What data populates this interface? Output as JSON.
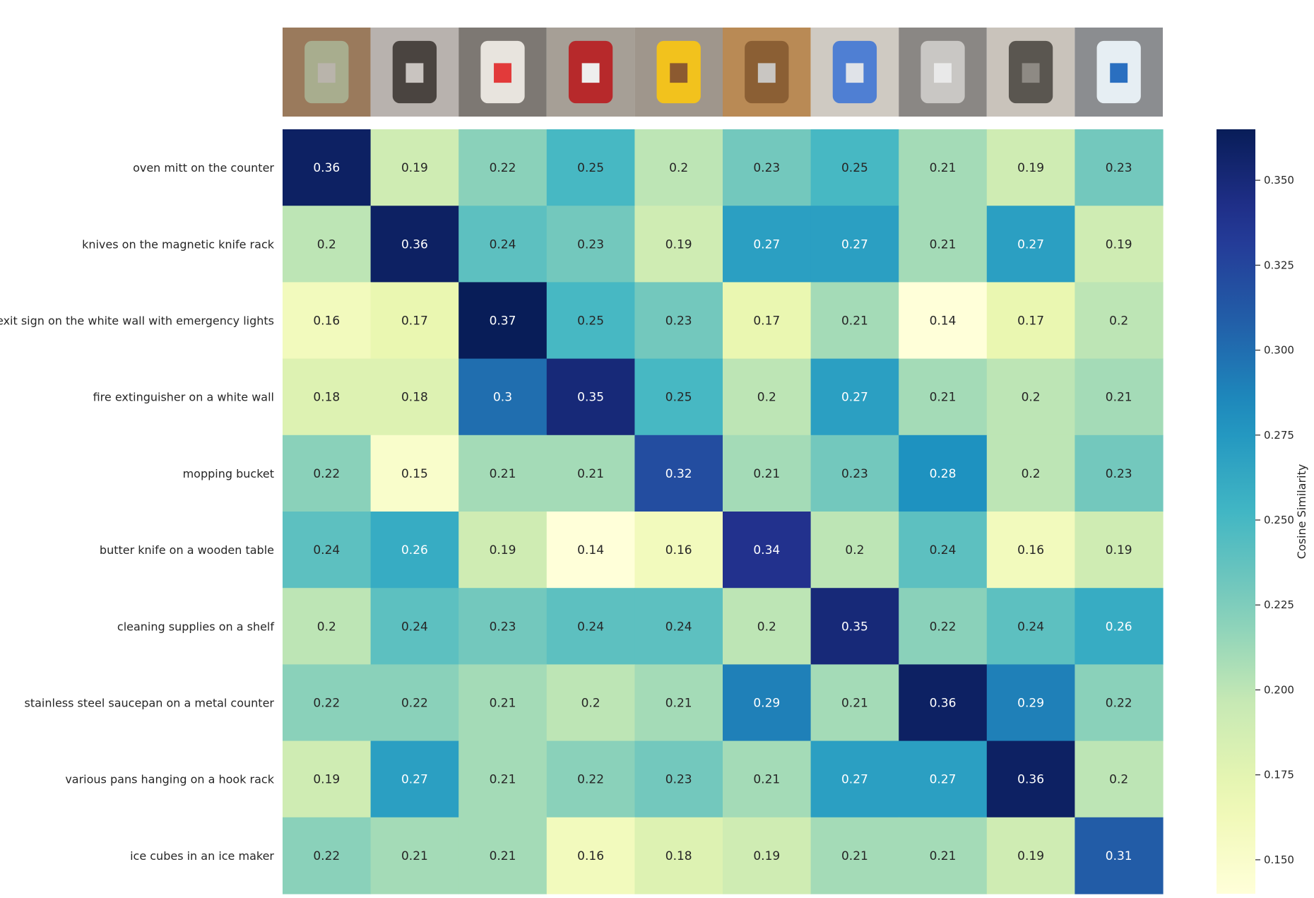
{
  "chart_data": {
    "type": "heatmap",
    "rows": [
      "oven mitt on the counter",
      "knives on the magnetic knife rack",
      "exit sign on the white wall with emergency lights",
      "fire extinguisher on a white wall",
      "mopping bucket",
      "butter knife on a wooden table",
      "cleaning supplies on a shelf",
      "stainless steel saucepan on a metal counter",
      "various pans hanging on a hook rack",
      "ice cubes in an ice maker"
    ],
    "columns": [
      "oven-mitt-image",
      "knife-rack-image",
      "exit-sign-image",
      "fire-extinguisher-image",
      "mop-bucket-image",
      "butter-knife-image",
      "cleaning-supplies-image",
      "saucepan-image",
      "hanging-pans-image",
      "ice-maker-image"
    ],
    "values": [
      [
        0.36,
        0.19,
        0.22,
        0.25,
        0.2,
        0.23,
        0.25,
        0.21,
        0.19,
        0.23
      ],
      [
        0.2,
        0.36,
        0.24,
        0.23,
        0.19,
        0.27,
        0.27,
        0.21,
        0.27,
        0.19
      ],
      [
        0.16,
        0.17,
        0.37,
        0.25,
        0.23,
        0.17,
        0.21,
        0.14,
        0.17,
        0.2
      ],
      [
        0.18,
        0.18,
        0.3,
        0.35,
        0.25,
        0.2,
        0.27,
        0.21,
        0.2,
        0.21
      ],
      [
        0.22,
        0.15,
        0.21,
        0.21,
        0.32,
        0.21,
        0.23,
        0.28,
        0.2,
        0.23
      ],
      [
        0.24,
        0.26,
        0.19,
        0.14,
        0.16,
        0.34,
        0.2,
        0.24,
        0.16,
        0.19
      ],
      [
        0.2,
        0.24,
        0.23,
        0.24,
        0.24,
        0.2,
        0.35,
        0.22,
        0.24,
        0.26
      ],
      [
        0.22,
        0.22,
        0.21,
        0.2,
        0.21,
        0.29,
        0.21,
        0.36,
        0.29,
        0.22
      ],
      [
        0.19,
        0.27,
        0.21,
        0.22,
        0.23,
        0.21,
        0.27,
        0.27,
        0.36,
        0.2
      ],
      [
        0.22,
        0.21,
        0.21,
        0.16,
        0.18,
        0.19,
        0.21,
        0.21,
        0.19,
        0.31
      ]
    ],
    "colormap": "YlGnBu",
    "colorbar": {
      "label": "Cosine Similarity",
      "range": [
        0.14,
        0.365
      ],
      "ticks": [
        0.15,
        0.175,
        0.2,
        0.225,
        0.25,
        0.275,
        0.3,
        0.325,
        0.35
      ],
      "tick_labels": [
        "0.150",
        "0.175",
        "0.200",
        "0.225",
        "0.250",
        "0.275",
        "0.300",
        "0.325",
        "0.350"
      ]
    },
    "column_thumbnails": [
      {
        "name": "oven-mitt-image",
        "colors": [
          "#9a7a5c",
          "#a8ad8e",
          "#b9b4ab"
        ]
      },
      {
        "name": "knife-rack-image",
        "colors": [
          "#b8b2ae",
          "#4a4440",
          "#c9c4c0"
        ]
      },
      {
        "name": "exit-sign-image",
        "colors": [
          "#7d7873",
          "#e8e4de",
          "#e23a3a"
        ]
      },
      {
        "name": "fire-extinguisher-image",
        "colors": [
          "#a69f96",
          "#b7292b",
          "#eeeeee"
        ]
      },
      {
        "name": "mop-bucket-image",
        "colors": [
          "#9f968c",
          "#f2c21d",
          "#8c5a30"
        ]
      },
      {
        "name": "butter-knife-image",
        "colors": [
          "#b98a55",
          "#8b5f34",
          "#c9c6c2"
        ]
      },
      {
        "name": "cleaning-supplies-image",
        "colors": [
          "#cfcac2",
          "#4f7fd3",
          "#e0e3e8"
        ]
      },
      {
        "name": "saucepan-image",
        "colors": [
          "#8a8784",
          "#c9c7c4",
          "#e9e9e9"
        ]
      },
      {
        "name": "hanging-pans-image",
        "colors": [
          "#c9c3bb",
          "#5a5650",
          "#8e8a84"
        ]
      },
      {
        "name": "ice-maker-image",
        "colors": [
          "#8b8d90",
          "#e6eef3",
          "#2a6fc0"
        ]
      }
    ]
  }
}
